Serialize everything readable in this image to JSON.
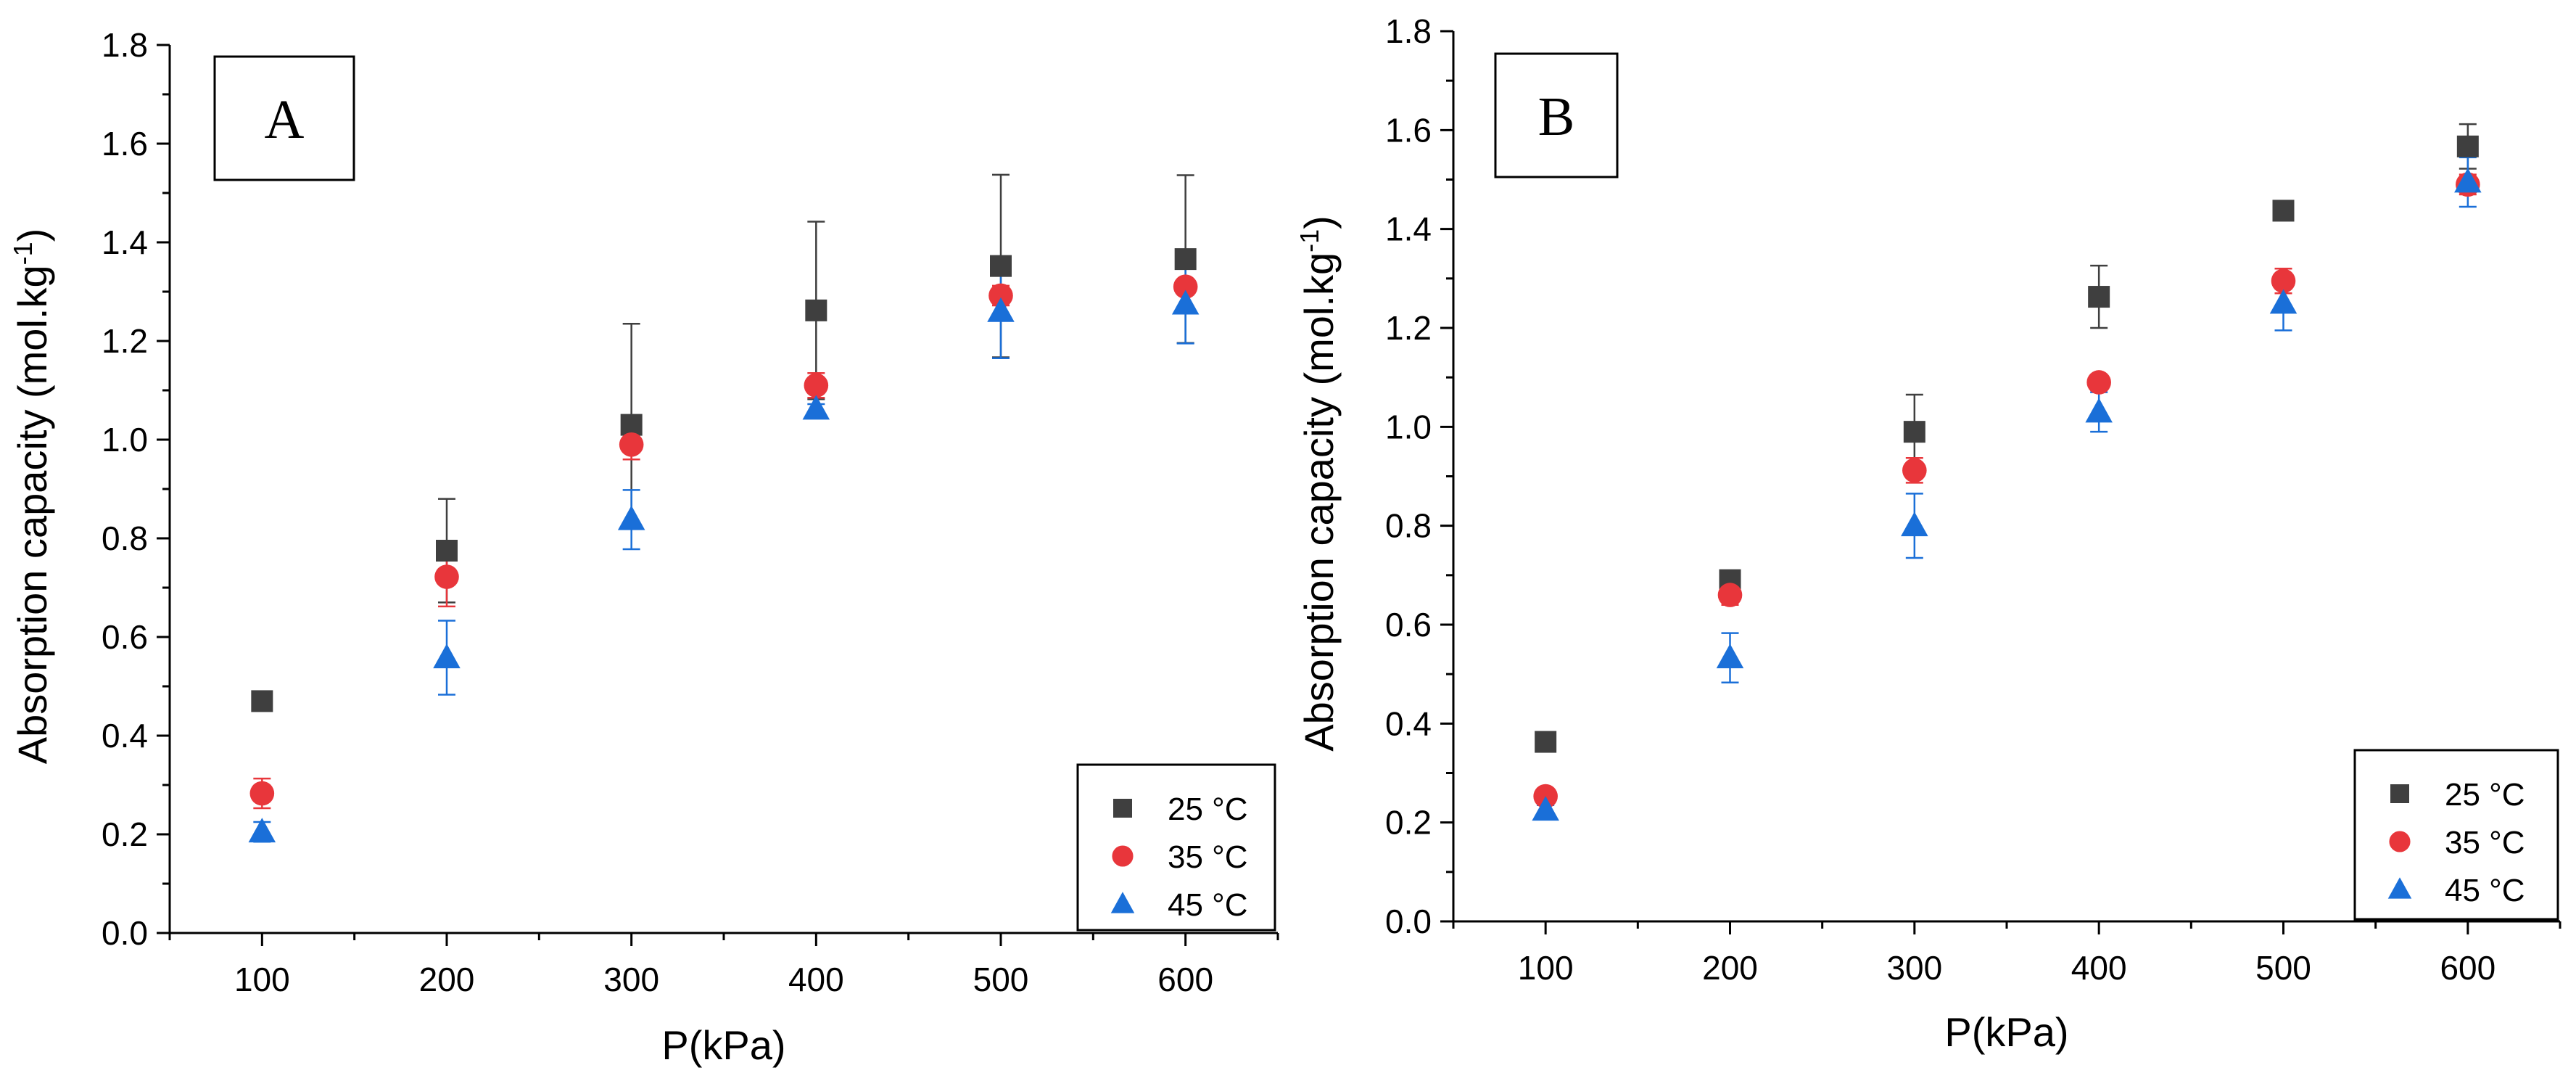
{
  "chart_data": [
    {
      "type": "scatter",
      "panel_label": "A",
      "xlabel": "P(kPa)",
      "ylabel": "Absorption capacity (mol.kg",
      "ylabel_sup": "-1",
      "ylabel_close": ")",
      "x": [
        100,
        200,
        300,
        400,
        500,
        600
      ],
      "xlim": [
        50,
        650
      ],
      "ylim": [
        0.0,
        1.8
      ],
      "yticks": [
        "0.0",
        "0.2",
        "0.4",
        "0.6",
        "0.8",
        "1.0",
        "1.2",
        "1.4",
        "1.6",
        "1.8"
      ],
      "xticks": [
        "100",
        "200",
        "300",
        "400",
        "500",
        "600"
      ],
      "legend_position": "bottom-right",
      "series": [
        {
          "name": "25 °C",
          "marker": "square",
          "color": "#3f3f3f",
          "values": [
            0.47,
            0.775,
            1.03,
            1.262,
            1.352,
            1.366
          ],
          "error": [
            0.015,
            0.105,
            0.205,
            0.18,
            0.185,
            0.17
          ]
        },
        {
          "name": "35 °C",
          "marker": "circle",
          "color": "#e8363b",
          "values": [
            0.283,
            0.722,
            0.99,
            1.11,
            1.292,
            1.31
          ],
          "error": [
            0.03,
            0.06,
            0.03,
            0.025,
            0.02,
            0.015
          ]
        },
        {
          "name": "45 °C",
          "marker": "triangle",
          "color": "#1a6fd8",
          "values": [
            0.205,
            0.558,
            0.838,
            1.062,
            1.26,
            1.275
          ],
          "error": [
            0.02,
            0.075,
            0.06,
            0.01,
            0.095,
            0.08
          ]
        }
      ]
    },
    {
      "type": "scatter",
      "panel_label": "B",
      "xlabel": "P(kPa)",
      "ylabel": "Absorption capacity (mol.kg",
      "ylabel_sup": "-1",
      "ylabel_close": ")",
      "x": [
        100,
        200,
        300,
        400,
        500,
        600
      ],
      "xlim": [
        50,
        650
      ],
      "ylim": [
        0.0,
        1.8
      ],
      "yticks": [
        "0.0",
        "0.2",
        "0.4",
        "0.6",
        "0.8",
        "1.0",
        "1.2",
        "1.4",
        "1.6",
        "1.8"
      ],
      "xticks": [
        "100",
        "200",
        "300",
        "400",
        "500",
        "600"
      ],
      "legend_position": "bottom-right",
      "series": [
        {
          "name": "25 °C",
          "marker": "square",
          "color": "#3f3f3f",
          "values": [
            0.363,
            0.69,
            0.99,
            1.263,
            1.437,
            1.567
          ],
          "error": [
            0.008,
            0.01,
            0.075,
            0.063,
            0.01,
            0.045
          ]
        },
        {
          "name": "35 °C",
          "marker": "circle",
          "color": "#e8363b",
          "values": [
            0.253,
            0.66,
            0.912,
            1.09,
            1.295,
            1.49
          ],
          "error": [
            0.008,
            0.02,
            0.025,
            0.01,
            0.025,
            0.02
          ]
        },
        {
          "name": "45 °C",
          "marker": "triangle",
          "color": "#1a6fd8",
          "values": [
            0.225,
            0.533,
            0.8,
            1.03,
            1.25,
            1.495
          ],
          "error": [
            0.01,
            0.05,
            0.065,
            0.04,
            0.055,
            0.05
          ]
        }
      ]
    }
  ]
}
